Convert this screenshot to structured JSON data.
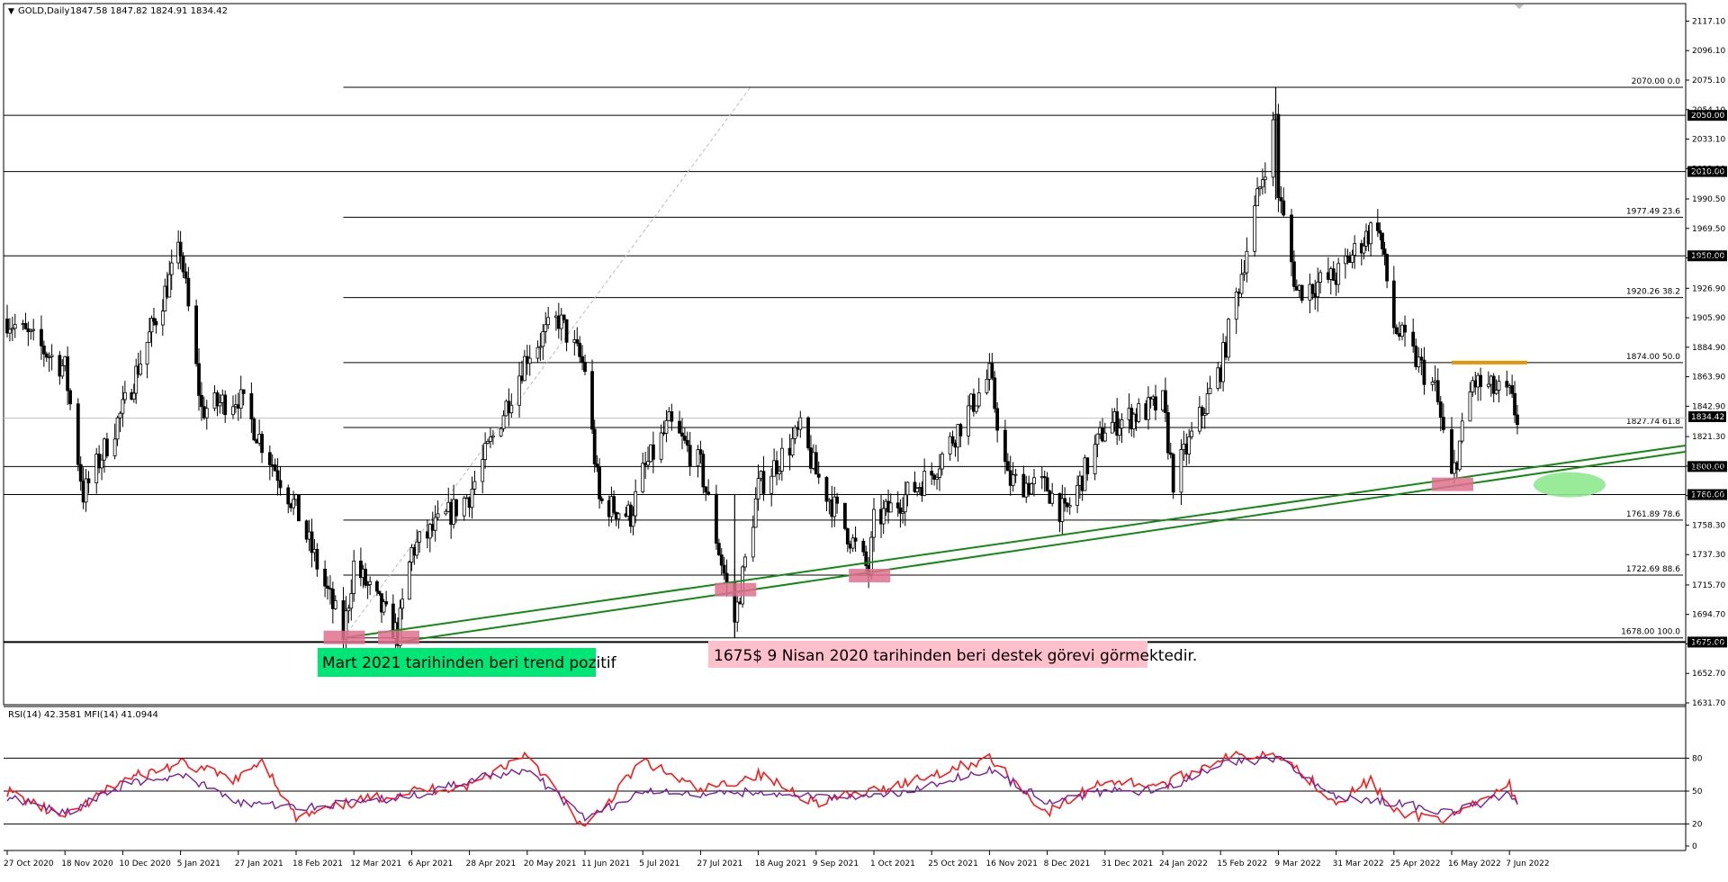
{
  "header": {
    "symbol": "GOLD,Daily",
    "ohlc": "1847.58 1847.82 1824.91 1834.42"
  },
  "price_axis": {
    "ticks": [
      "2117.10",
      "2096.10",
      "2075.10",
      "2054.10",
      "2033.10",
      "2012.10",
      "1990.50",
      "1969.50",
      "1948.50",
      "1926.90",
      "1905.90",
      "1884.90",
      "1863.90",
      "1842.90",
      "1821.30",
      "1800.30",
      "1779.30",
      "1758.30",
      "1737.30",
      "1715.70",
      "1694.70",
      "1673.70",
      "1652.70",
      "1631.70"
    ],
    "current_price_badge": "1834.42"
  },
  "levels": {
    "horizontal": [
      {
        "price": 2050,
        "label": "2050.00"
      },
      {
        "price": 2010,
        "label": "2010.00"
      },
      {
        "price": 1950,
        "label": "1950.00"
      },
      {
        "price": 1800,
        "label": "1800.00"
      },
      {
        "price": 1780,
        "label": "1780.00"
      },
      {
        "price": 1675,
        "label": "1675.00"
      }
    ],
    "fibonacci": [
      {
        "price": 2070.0,
        "label": "2070.00 0.0"
      },
      {
        "price": 1977.49,
        "label": "1977.49 23.6"
      },
      {
        "price": 1920.26,
        "label": "1920.26 38.2"
      },
      {
        "price": 1874.0,
        "label": "1874.00 50.0"
      },
      {
        "price": 1827.74,
        "label": "1827.74 61.8"
      },
      {
        "price": 1761.89,
        "label": "1761.89 78.6"
      },
      {
        "price": 1722.69,
        "label": "1722.69 88.6"
      },
      {
        "price": 1678.0,
        "label": "1678.00 100.0"
      }
    ],
    "resistance_price": 1874
  },
  "annotations": {
    "trend_note": "Mart 2021 tarihinden beri trend pozitif",
    "support_note": "1675$  9 Nisan 2020 tarihinden beri destek görevi görmektedir."
  },
  "date_axis": [
    "27 Oct 2020",
    "18 Nov 2020",
    "10 Dec 2020",
    "5 Jan 2021",
    "27 Jan 2021",
    "18 Feb 2021",
    "12 Mar 2021",
    "6 Apr 2021",
    "28 Apr 2021",
    "20 May 2021",
    "11 Jun 2021",
    "5 Jul 2021",
    "27 Jul 2021",
    "18 Aug 2021",
    "9 Sep 2021",
    "1 Oct 2021",
    "25 Oct 2021",
    "16 Nov 2021",
    "8 Dec 2021",
    "31 Dec 2021",
    "24 Jan 2022",
    "15 Feb 2022",
    "9 Mar 2022",
    "31 Mar 2022",
    "25 Apr 2022",
    "16 May 2022",
    "7 Jun 2022"
  ],
  "indicator": {
    "header": "RSI(14) 42.3581   MFI(14) 41.0944",
    "ticks": [
      "80",
      "50",
      "20",
      "0"
    ],
    "colors": {
      "rsi": "#7b1fa2",
      "mfi": "#ff1a1a"
    }
  },
  "colors": {
    "trendline": "#138a13",
    "resistance": "#e69500",
    "support_box": "#e0708f",
    "target_ellipse": "#8ee88e",
    "trend_note_bg": "#00e676",
    "support_note_bg": "#ffc0cb"
  },
  "chart_data": {
    "type": "candlestick",
    "ylim": [
      1631.7,
      2127
    ],
    "indicator_ylim": [
      0,
      100
    ],
    "price_path": [
      [
        "27 Oct 2020",
        1905
      ],
      [
        "18 Nov 2020",
        1870
      ],
      [
        "25 Nov 2020",
        1780
      ],
      [
        "10 Dec 2020",
        1840
      ],
      [
        "5 Jan 2021",
        1955
      ],
      [
        "13 Jan 2021",
        1840
      ],
      [
        "27 Jan 2021",
        1850
      ],
      [
        "18 Feb 2021",
        1770
      ],
      [
        "8 Mar 2021",
        1680
      ],
      [
        "12 Mar 2021",
        1730
      ],
      [
        "31 Mar 2021",
        1680
      ],
      [
        "6 Apr 2021",
        1740
      ],
      [
        "28 Apr 2021",
        1780
      ],
      [
        "20 May 2021",
        1880
      ],
      [
        "1 Jun 2021",
        1905
      ],
      [
        "11 Jun 2021",
        1870
      ],
      [
        "17 Jun 2021",
        1775
      ],
      [
        "30 Jun 2021",
        1765
      ],
      [
        "5 Jul 2021",
        1795
      ],
      [
        "15 Jul 2021",
        1830
      ],
      [
        "27 Jul 2021",
        1800
      ],
      [
        "9 Aug 2021",
        1690
      ],
      [
        "18 Aug 2021",
        1785
      ],
      [
        "3 Sep 2021",
        1825
      ],
      [
        "9 Sep 2021",
        1795
      ],
      [
        "29 Sep 2021",
        1725
      ],
      [
        "1 Oct 2021",
        1760
      ],
      [
        "25 Oct 2021",
        1795
      ],
      [
        "16 Nov 2021",
        1865
      ],
      [
        "23 Nov 2021",
        1790
      ],
      [
        "8 Dec 2021",
        1785
      ],
      [
        "15 Dec 2021",
        1765
      ],
      [
        "31 Dec 2021",
        1828
      ],
      [
        "24 Jan 2022",
        1845
      ],
      [
        "28 Jan 2022",
        1790
      ],
      [
        "15 Feb 2022",
        1870
      ],
      [
        "8 Mar 2022",
        2050
      ],
      [
        "9 Mar 2022",
        1995
      ],
      [
        "16 Mar 2022",
        1925
      ],
      [
        "31 Mar 2022",
        1935
      ],
      [
        "18 Apr 2022",
        1975
      ],
      [
        "25 Apr 2022",
        1900
      ],
      [
        "10 May 2022",
        1855
      ],
      [
        "16 May 2022",
        1790
      ],
      [
        "24 May 2022",
        1860
      ],
      [
        "7 Jun 2022",
        1850
      ],
      [
        "10 Jun 2022",
        1834.42
      ]
    ],
    "annotated_prices": {
      "marked_high": 2070.0,
      "marked_low": 1678.0,
      "low_markers": [
        {
          "date": "8 Mar 2021",
          "price": 1678
        },
        {
          "date": "31 Mar 2021",
          "price": 1678
        },
        {
          "date": "9 Aug 2021",
          "price": 1712
        },
        {
          "date": "29 Sep 2021",
          "price": 1722
        },
        {
          "date": "16 May 2022",
          "price": 1787
        }
      ]
    },
    "trendlines": [
      {
        "from": [
          "8 Mar 2021",
          1678
        ],
        "to": [
          "7 Jun 2022",
          1797
        ]
      },
      {
        "from": [
          "31 Mar 2021",
          1675
        ],
        "to": [
          "7 Jun 2022",
          1792
        ]
      }
    ],
    "rsi_path": [
      [
        "27 Oct 2020",
        45
      ],
      [
        "18 Nov 2020",
        30
      ],
      [
        "10 Dec 2020",
        55
      ],
      [
        "5 Jan 2021",
        65
      ],
      [
        "27 Jan 2021",
        40
      ],
      [
        "18 Feb 2021",
        35
      ],
      [
        "12 Mar 2021",
        40
      ],
      [
        "6 Apr 2021",
        45
      ],
      [
        "28 Apr 2021",
        60
      ],
      [
        "20 May 2021",
        70
      ],
      [
        "11 Jun 2021",
        25
      ],
      [
        "5 Jul 2021",
        50
      ],
      [
        "27 Jul 2021",
        45
      ],
      [
        "18 Aug 2021",
        50
      ],
      [
        "9 Sep 2021",
        45
      ],
      [
        "1 Oct 2021",
        45
      ],
      [
        "25 Oct 2021",
        55
      ],
      [
        "16 Nov 2021",
        70
      ],
      [
        "8 Dec 2021",
        40
      ],
      [
        "31 Dec 2021",
        50
      ],
      [
        "24 Jan 2022",
        50
      ],
      [
        "15 Feb 2022",
        75
      ],
      [
        "9 Mar 2022",
        80
      ],
      [
        "31 Mar 2022",
        45
      ],
      [
        "25 Apr 2022",
        40
      ],
      [
        "16 May 2022",
        30
      ],
      [
        "7 Jun 2022",
        48
      ],
      [
        "10 Jun 2022",
        42.3581
      ]
    ],
    "mfi_path": [
      [
        "27 Oct 2020",
        50
      ],
      [
        "18 Nov 2020",
        25
      ],
      [
        "10 Dec 2020",
        60
      ],
      [
        "5 Jan 2021",
        75
      ],
      [
        "27 Jan 2021",
        60
      ],
      [
        "5 Feb 2021",
        80
      ],
      [
        "18 Feb 2021",
        25
      ],
      [
        "12 Mar 2021",
        40
      ],
      [
        "6 Apr 2021",
        50
      ],
      [
        "28 Apr 2021",
        55
      ],
      [
        "20 May 2021",
        85
      ],
      [
        "11 Jun 2021",
        15
      ],
      [
        "5 Jul 2021",
        78
      ],
      [
        "27 Jul 2021",
        50
      ],
      [
        "18 Aug 2021",
        65
      ],
      [
        "9 Sep 2021",
        40
      ],
      [
        "1 Oct 2021",
        50
      ],
      [
        "25 Oct 2021",
        65
      ],
      [
        "16 Nov 2021",
        80
      ],
      [
        "8 Dec 2021",
        30
      ],
      [
        "31 Dec 2021",
        60
      ],
      [
        "24 Jan 2022",
        55
      ],
      [
        "15 Feb 2022",
        80
      ],
      [
        "9 Mar 2022",
        85
      ],
      [
        "31 Mar 2022",
        40
      ],
      [
        "15 Apr 2022",
        60
      ],
      [
        "25 Apr 2022",
        30
      ],
      [
        "16 May 2022",
        25
      ],
      [
        "7 Jun 2022",
        55
      ],
      [
        "10 Jun 2022",
        41.0944
      ]
    ]
  }
}
